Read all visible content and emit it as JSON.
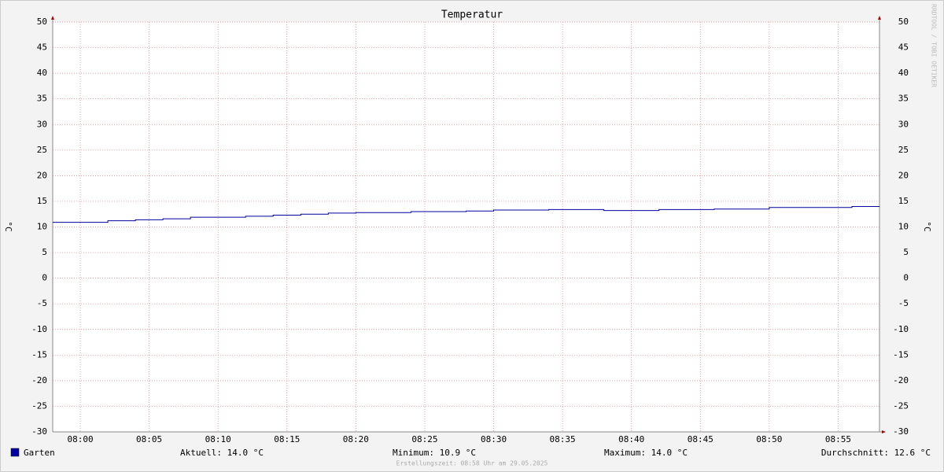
{
  "chart_data": {
    "type": "step",
    "title": "Temperatur",
    "y_label": "°C",
    "y2_label": "°C",
    "x": [
      478,
      482,
      484,
      486,
      488,
      492,
      494,
      496,
      498,
      500,
      504,
      508,
      510,
      514,
      518,
      522,
      526,
      530,
      536
    ],
    "series": [
      {
        "name": "Garten",
        "color": "#0000a0",
        "values": [
          10.9,
          11.2,
          11.4,
          11.6,
          11.9,
          12.1,
          12.3,
          12.5,
          12.7,
          12.8,
          13.0,
          13.1,
          13.3,
          13.4,
          13.2,
          13.4,
          13.5,
          13.8,
          14.0
        ]
      }
    ],
    "xlim": [
      478,
      538
    ],
    "xticks": [
      {
        "value": 480,
        "label": "08:00"
      },
      {
        "value": 485,
        "label": "08:05"
      },
      {
        "value": 490,
        "label": "08:10"
      },
      {
        "value": 495,
        "label": "08:15"
      },
      {
        "value": 500,
        "label": "08:20"
      },
      {
        "value": 505,
        "label": "08:25"
      },
      {
        "value": 510,
        "label": "08:30"
      },
      {
        "value": 515,
        "label": "08:35"
      },
      {
        "value": 520,
        "label": "08:40"
      },
      {
        "value": 525,
        "label": "08:45"
      },
      {
        "value": 530,
        "label": "08:50"
      },
      {
        "value": 535,
        "label": "08:55"
      }
    ],
    "ylim": [
      -30,
      50
    ],
    "yticks": [
      -30,
      -25,
      -20,
      -15,
      -10,
      -5,
      0,
      5,
      10,
      15,
      20,
      25,
      30,
      35,
      40,
      45,
      50
    ],
    "grid": true,
    "stats": [
      "Aktuell: 14.0 °C",
      "Minimum: 10.9 °C",
      "Maximum: 14.0 °C",
      "Durchschnitt: 12.6 °C"
    ],
    "footer": "Erstellungszeit: 08:58 Uhr am 29.05.2025",
    "watermark": "RRDTOOL / TOBI OETIKER"
  }
}
